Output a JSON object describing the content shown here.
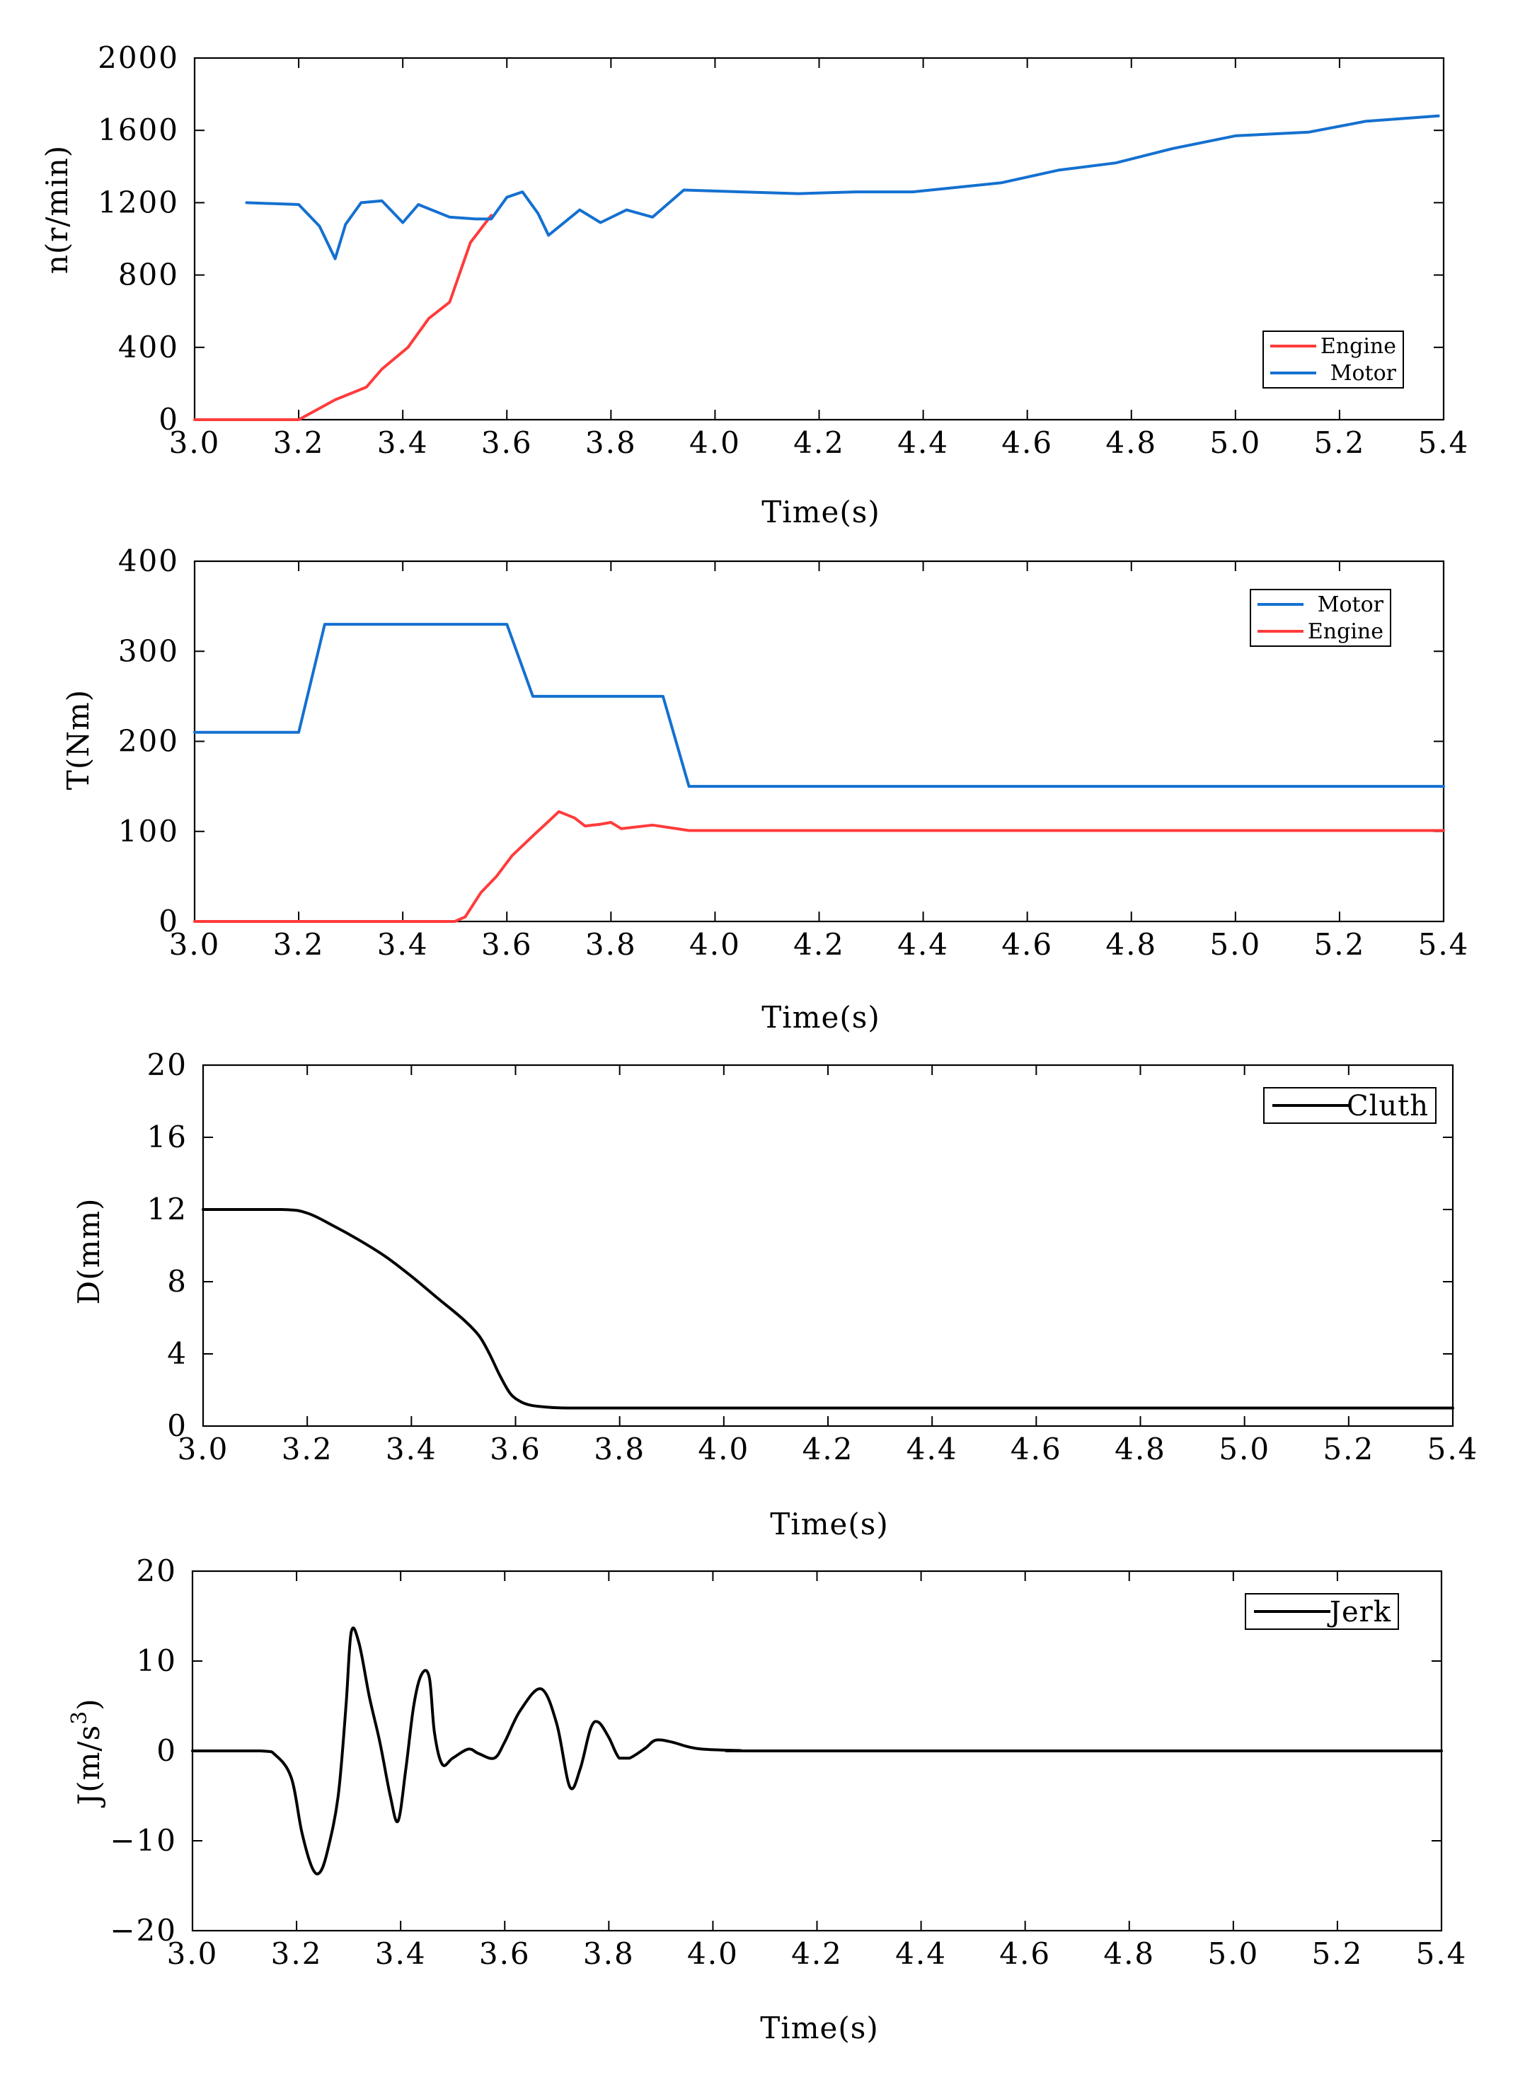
{
  "chart_data": [
    {
      "type": "line",
      "xlabel": "Time(s)",
      "ylabel": "n(r/min)",
      "xlim": [
        3.0,
        5.4
      ],
      "ylim": [
        0,
        2000
      ],
      "xticks": [
        "3.0",
        "3.2",
        "3.4",
        "3.6",
        "3.8",
        "4.0",
        "4.2",
        "4.4",
        "4.6",
        "4.8",
        "5.0",
        "5.2",
        "5.4"
      ],
      "yticks": [
        "0",
        "400",
        "800",
        "1200",
        "1600",
        "2000"
      ],
      "legend_position": "bottom-right",
      "series": [
        {
          "name": "Engine",
          "color": "#ff3b3b",
          "x": [
            3.0,
            3.2,
            3.27,
            3.33,
            3.36,
            3.41,
            3.45,
            3.49,
            3.53,
            3.57
          ],
          "y": [
            0,
            0,
            110,
            180,
            280,
            400,
            560,
            650,
            980,
            1130
          ]
        },
        {
          "name": "Motor",
          "color": "#1470d0",
          "x": [
            3.1,
            3.2,
            3.24,
            3.27,
            3.29,
            3.32,
            3.36,
            3.4,
            3.43,
            3.49,
            3.54,
            3.57,
            3.6,
            3.63,
            3.66,
            3.68,
            3.74,
            3.78,
            3.83,
            3.88,
            3.94,
            4.16,
            4.27,
            4.38,
            4.55,
            4.66,
            4.77,
            4.88,
            5.0,
            5.14,
            5.25,
            5.39
          ],
          "y": [
            1200,
            1190,
            1070,
            890,
            1080,
            1200,
            1210,
            1090,
            1190,
            1120,
            1110,
            1110,
            1230,
            1260,
            1140,
            1020,
            1160,
            1090,
            1160,
            1120,
            1270,
            1250,
            1260,
            1260,
            1310,
            1380,
            1420,
            1500,
            1570,
            1590,
            1650,
            1680
          ]
        }
      ]
    },
    {
      "type": "line",
      "xlabel": "Time(s)",
      "ylabel": "T(Nm)",
      "xlim": [
        3.0,
        5.4
      ],
      "ylim": [
        0,
        400
      ],
      "xticks": [
        "3.0",
        "3.2",
        "3.4",
        "3.6",
        "3.8",
        "4.0",
        "4.2",
        "4.4",
        "4.6",
        "4.8",
        "5.0",
        "5.2",
        "5.4"
      ],
      "yticks": [
        "0",
        "100",
        "200",
        "300",
        "400"
      ],
      "legend_position": "top-right",
      "series": [
        {
          "name": "Motor",
          "color": "#1470d0",
          "x": [
            3.0,
            3.2,
            3.25,
            3.6,
            3.65,
            3.9,
            3.95,
            5.4
          ],
          "y": [
            210,
            210,
            330,
            330,
            250,
            250,
            150,
            150
          ]
        },
        {
          "name": "Engine",
          "color": "#ff3b3b",
          "x": [
            3.0,
            3.5,
            3.52,
            3.55,
            3.58,
            3.61,
            3.65,
            3.7,
            3.73,
            3.75,
            3.78,
            3.8,
            3.82,
            3.88,
            3.95,
            5.4
          ],
          "y": [
            0,
            0,
            5,
            32,
            50,
            73,
            95,
            122,
            115,
            106,
            108,
            110,
            103,
            107,
            101,
            101
          ]
        }
      ]
    },
    {
      "type": "line",
      "xlabel": "Time(s)",
      "ylabel": "D(mm)",
      "xlim": [
        3.0,
        5.4
      ],
      "ylim": [
        0,
        20
      ],
      "xticks": [
        "3.0",
        "3.2",
        "3.4",
        "3.6",
        "3.8",
        "4.0",
        "4.2",
        "4.4",
        "4.6",
        "4.8",
        "5.0",
        "5.2",
        "5.4"
      ],
      "yticks": [
        "0",
        "4",
        "8",
        "12",
        "16",
        "20"
      ],
      "legend_position": "top-right",
      "series": [
        {
          "name": "Cluth",
          "color": "#000000",
          "x": [
            3.0,
            3.15,
            3.2,
            3.25,
            3.3,
            3.35,
            3.4,
            3.45,
            3.5,
            3.53,
            3.55,
            3.57,
            3.59,
            3.61,
            3.63,
            3.66,
            3.7,
            3.8,
            4.0,
            5.4
          ],
          "y": [
            12,
            12,
            11.8,
            11.1,
            10.3,
            9.4,
            8.3,
            7.1,
            5.9,
            5.0,
            4.0,
            2.8,
            1.8,
            1.35,
            1.15,
            1.05,
            1.0,
            1.0,
            1.0,
            1.0
          ]
        }
      ]
    },
    {
      "type": "line",
      "xlabel": "Time(s)",
      "ylabel": "J(m/s3)",
      "xlim": [
        3.0,
        5.4
      ],
      "ylim": [
        -20,
        20
      ],
      "xticks": [
        "3.0",
        "3.2",
        "3.4",
        "3.6",
        "3.8",
        "4.0",
        "4.2",
        "4.4",
        "4.6",
        "4.8",
        "5.0",
        "5.2",
        "5.4"
      ],
      "yticks": [
        "-20",
        "-10",
        "0",
        "10",
        "20"
      ],
      "legend_position": "top-right",
      "series": [
        {
          "name": "Jerk",
          "color": "#000000",
          "x": [
            3.0,
            3.13,
            3.16,
            3.19,
            3.21,
            3.23,
            3.245,
            3.26,
            3.28,
            3.295,
            3.305,
            3.32,
            3.34,
            3.36,
            3.38,
            3.395,
            3.41,
            3.425,
            3.44,
            3.455,
            3.465,
            3.48,
            3.5,
            3.53,
            3.55,
            3.58,
            3.6,
            3.63,
            3.67,
            3.7,
            3.725,
            3.745,
            3.765,
            3.78,
            3.8,
            3.82,
            3.84,
            3.87,
            3.89,
            3.92,
            3.95,
            3.98,
            4.05,
            4.15,
            5.4
          ],
          "y": [
            0,
            0,
            -0.5,
            -3,
            -9,
            -13,
            -13.5,
            -11,
            -5,
            5,
            13.2,
            12,
            6,
            1,
            -5,
            -7.8,
            -2,
            5,
            8.5,
            8.2,
            2,
            -1.5,
            -0.8,
            0.2,
            -0.3,
            -0.8,
            1,
            4.5,
            6.9,
            3,
            -4,
            -2,
            2.5,
            3.2,
            1.5,
            -0.8,
            -0.8,
            0.3,
            1.2,
            1.0,
            0.5,
            0.2,
            0.05,
            0,
            0
          ]
        }
      ]
    }
  ]
}
